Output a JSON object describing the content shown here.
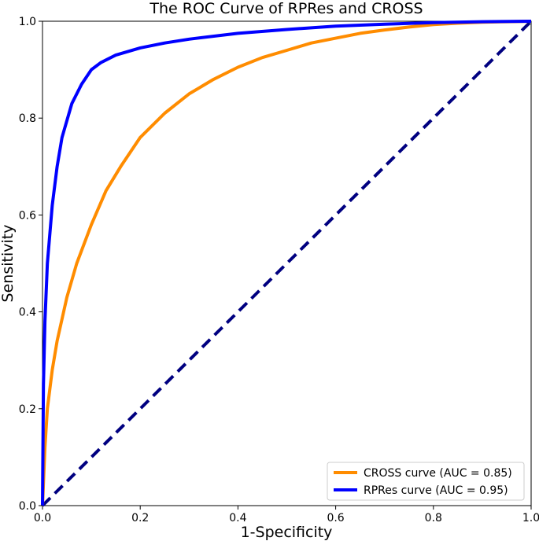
{
  "chart_data": {
    "type": "line",
    "title": "The ROC Curve of RPRes and CROSS",
    "xlabel": "1-Specificity",
    "ylabel": "Sensitivity",
    "xlim": [
      0.0,
      1.0
    ],
    "ylim": [
      0.0,
      1.0
    ],
    "xticks": [
      "0.0",
      "0.2",
      "0.4",
      "0.6",
      "0.8",
      "1.0"
    ],
    "yticks": [
      "0.0",
      "0.2",
      "0.4",
      "0.6",
      "0.8",
      "1.0"
    ],
    "grid": false,
    "legend_position": "lower-right",
    "series": [
      {
        "name": "CROSS curve (AUC = 0.85)",
        "color": "#ff8c00",
        "style": "solid",
        "x": [
          0,
          0.005,
          0.01,
          0.02,
          0.03,
          0.05,
          0.07,
          0.1,
          0.13,
          0.16,
          0.2,
          0.25,
          0.3,
          0.35,
          0.4,
          0.45,
          0.5,
          0.55,
          0.6,
          0.65,
          0.7,
          0.75,
          0.8,
          0.85,
          0.9,
          0.95,
          1.0
        ],
        "y": [
          0,
          0.12,
          0.2,
          0.28,
          0.34,
          0.43,
          0.5,
          0.58,
          0.65,
          0.7,
          0.76,
          0.81,
          0.85,
          0.88,
          0.905,
          0.925,
          0.94,
          0.955,
          0.965,
          0.975,
          0.982,
          0.988,
          0.993,
          0.996,
          0.998,
          0.999,
          1.0
        ]
      },
      {
        "name": "RPRes curve (AUC = 0.95)",
        "color": "#0000ff",
        "style": "solid",
        "x": [
          0,
          0.002,
          0.005,
          0.01,
          0.02,
          0.03,
          0.04,
          0.06,
          0.08,
          0.1,
          0.12,
          0.15,
          0.2,
          0.25,
          0.3,
          0.4,
          0.5,
          0.6,
          0.7,
          0.8,
          0.9,
          1.0
        ],
        "y": [
          0,
          0.25,
          0.38,
          0.5,
          0.62,
          0.7,
          0.76,
          0.83,
          0.87,
          0.9,
          0.915,
          0.93,
          0.945,
          0.955,
          0.963,
          0.975,
          0.983,
          0.99,
          0.994,
          0.997,
          0.999,
          1.0
        ]
      },
      {
        "name": "",
        "color": "#000080",
        "style": "dashed",
        "x": [
          0,
          1
        ],
        "y": [
          0,
          1
        ]
      }
    ]
  }
}
